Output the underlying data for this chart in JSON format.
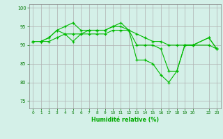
{
  "background_color": "#d4f0e8",
  "grid_color": "#b0b0b0",
  "line_color": "#00bb00",
  "marker_color": "#00bb00",
  "xlabel": "Humidité relative (%)",
  "xlabel_color": "#00aa00",
  "ylim": [
    73,
    101
  ],
  "xlim": [
    -0.5,
    23.5
  ],
  "yticks": [
    75,
    80,
    85,
    90,
    95,
    100
  ],
  "xtick_positions": [
    0,
    1,
    2,
    3,
    4,
    5,
    6,
    7,
    8,
    9,
    10,
    11,
    12,
    13,
    14,
    15,
    16,
    17,
    18,
    19,
    20,
    22,
    23
  ],
  "xtick_labels": [
    "0",
    "1",
    "2",
    "3",
    "4",
    "5",
    "6",
    "7",
    "8",
    "9",
    "10",
    "11",
    "12",
    "13",
    "14",
    "15",
    "16",
    "17",
    "18",
    "19",
    "20",
    "22",
    "23"
  ],
  "series": [
    {
      "x": [
        0,
        1,
        2,
        3,
        4,
        5,
        6,
        7,
        8,
        9,
        10,
        11,
        12,
        13,
        14,
        15,
        16,
        17,
        18,
        19,
        20,
        22,
        23
      ],
      "y": [
        91,
        91,
        91,
        92,
        93,
        91,
        93,
        94,
        94,
        94,
        95,
        95,
        94,
        93,
        92,
        91,
        91,
        90,
        90,
        90,
        90,
        90,
        89
      ]
    },
    {
      "x": [
        0,
        1,
        2,
        3,
        4,
        5,
        6,
        7,
        8,
        9,
        10,
        11,
        12,
        13,
        14,
        15,
        16,
        17,
        18,
        19,
        20,
        22,
        23
      ],
      "y": [
        91,
        91,
        92,
        94,
        95,
        96,
        94,
        94,
        94,
        94,
        95,
        96,
        94,
        86,
        86,
        85,
        82,
        80,
        83,
        90,
        90,
        92,
        89
      ]
    },
    {
      "x": [
        0,
        1,
        2,
        3,
        4,
        5,
        6,
        7,
        8,
        9,
        10,
        11,
        12,
        13,
        14,
        15,
        16,
        17,
        18,
        19,
        20,
        22,
        23
      ],
      "y": [
        91,
        91,
        92,
        94,
        93,
        93,
        93,
        93,
        93,
        93,
        94,
        94,
        94,
        90,
        90,
        90,
        89,
        83,
        83,
        90,
        90,
        92,
        89
      ]
    }
  ]
}
